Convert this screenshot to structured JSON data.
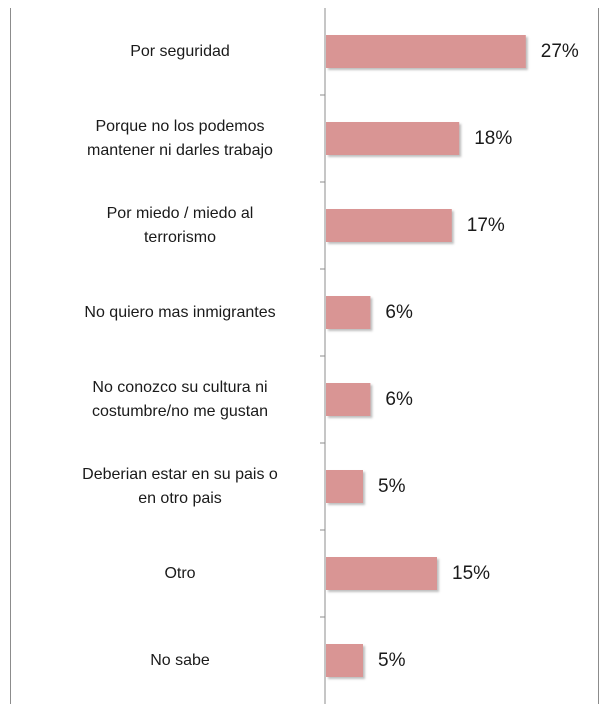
{
  "chart_data": {
    "type": "bar",
    "orientation": "horizontal",
    "categories": [
      "Por seguridad",
      "Porque no los podemos mantener ni darles trabajo",
      "Por miedo  / miedo al terrorismo",
      "No quiero mas inmigrantes",
      "No conozco su cultura ni costumbre/no me gustan",
      "Deberian estar en su pais o en otro pais",
      "Otro",
      "No sabe"
    ],
    "category_lines": [
      [
        "Por seguridad"
      ],
      [
        "Porque no los podemos",
        "mantener ni darles trabajo"
      ],
      [
        "Por miedo  / miedo al",
        "terrorismo"
      ],
      [
        "No quiero mas inmigrantes"
      ],
      [
        "No conozco su cultura ni",
        "costumbre/no me gustan"
      ],
      [
        "Deberian estar en su pais o",
        "en otro pais"
      ],
      [
        "Otro"
      ],
      [
        "No sabe"
      ]
    ],
    "values": [
      27,
      18,
      17,
      6,
      6,
      5,
      15,
      5
    ],
    "value_labels": [
      "27%",
      "18%",
      "17%",
      "6%",
      "6%",
      "5%",
      "15%",
      "5%"
    ],
    "xlim": [
      0,
      30
    ],
    "bar_color": "#d99594",
    "axis_color": "#8c8c8c",
    "grid": false,
    "legend": "none",
    "title": "",
    "xlabel": "",
    "ylabel": ""
  }
}
